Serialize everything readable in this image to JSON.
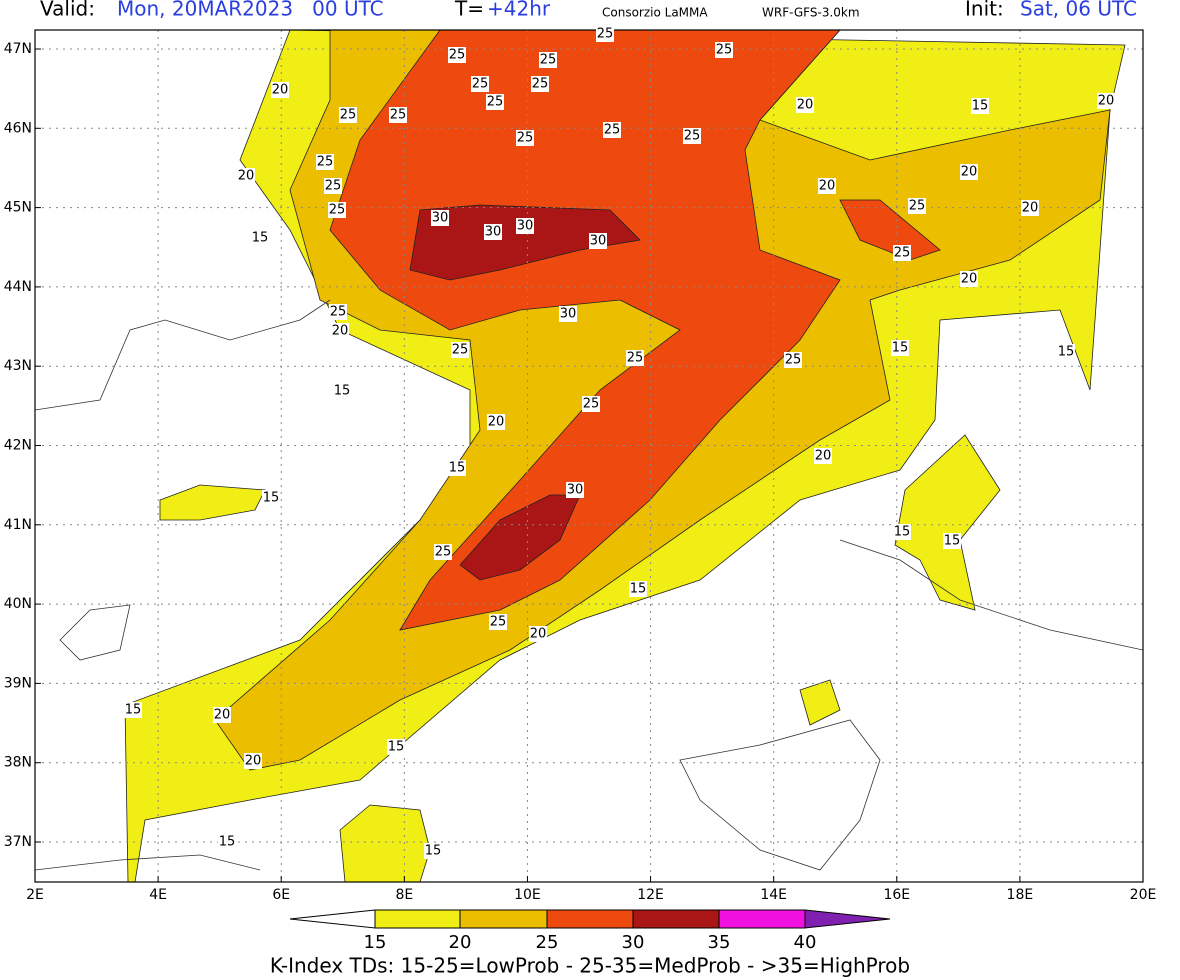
{
  "header": {
    "valid_label": "Valid:",
    "valid_value": "Mon, 20MAR2023   00 UTC",
    "t_label": "T=",
    "t_value": "+42hr",
    "source": "Consorzio LaMMA",
    "model": "WRF-GFS-3.0km",
    "init_label": "Init:",
    "init_value": "Sat, 06 UTC"
  },
  "map": {
    "lat_labels": [
      "47N",
      "46N",
      "45N",
      "44N",
      "43N",
      "42N",
      "41N",
      "40N",
      "39N",
      "38N",
      "37N"
    ],
    "lon_labels": [
      "2E",
      "4E",
      "6E",
      "8E",
      "10E",
      "12E",
      "14E",
      "16E",
      "18E",
      "20E"
    ],
    "contour_labels": [
      "25",
      "25",
      "25",
      "25",
      "25",
      "25",
      "25",
      "20",
      "25",
      "25",
      "25",
      "25",
      "25",
      "20",
      "15",
      "20",
      "25",
      "20",
      "25",
      "25",
      "30",
      "30",
      "30",
      "30",
      "20",
      "20",
      "25",
      "20",
      "15",
      "25",
      "20",
      "25",
      "20",
      "30",
      "25",
      "25",
      "25",
      "15",
      "15",
      "15",
      "25",
      "20",
      "20",
      "15",
      "15",
      "30",
      "25",
      "15",
      "15",
      "15",
      "25",
      "20",
      "15",
      "20",
      "15",
      "20",
      "15",
      "15"
    ]
  },
  "colorbar": {
    "labels": [
      "15",
      "20",
      "25",
      "30",
      "35",
      "40"
    ]
  },
  "footer": "K-Index TDs: 15-25=LowProb - 25-35=MedProb - >35=HighProb"
}
